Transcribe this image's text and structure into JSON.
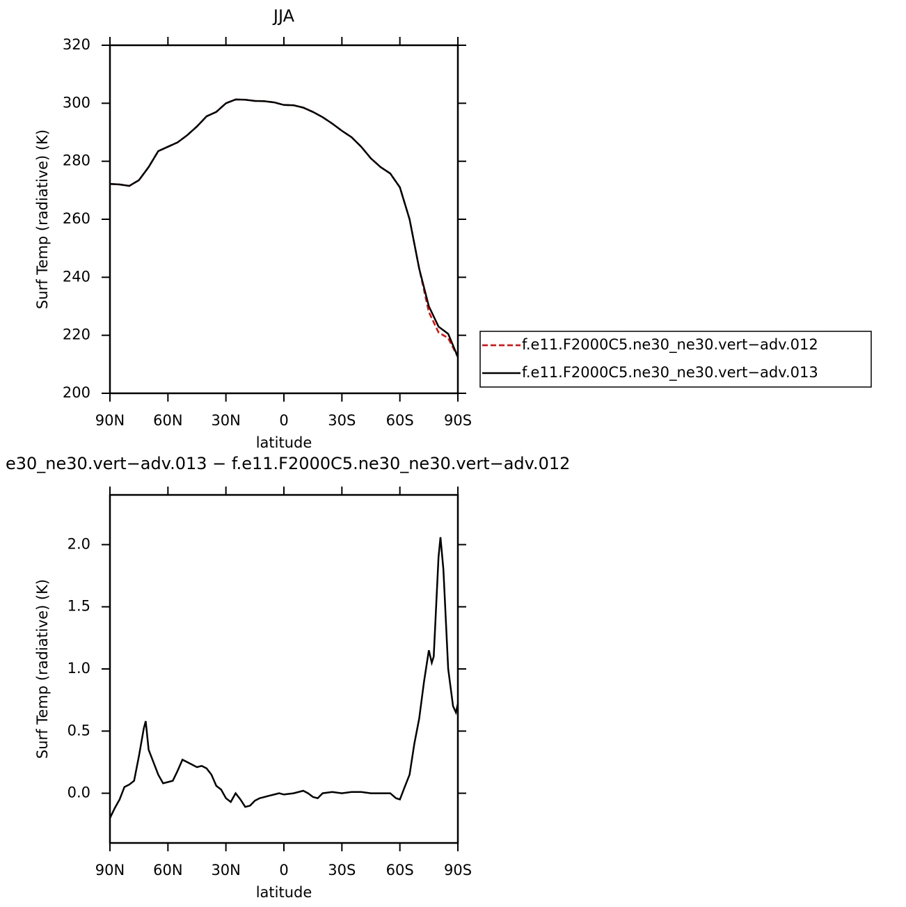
{
  "chart_data": [
    {
      "type": "line",
      "title": "JJA",
      "xlabel": "latitude",
      "ylabel": "Surf Temp (radiative) (K)",
      "x": [
        90,
        85,
        80,
        75,
        70,
        65,
        60,
        55,
        50,
        45,
        40,
        35,
        30,
        25,
        20,
        15,
        10,
        5,
        0,
        -5,
        -10,
        -15,
        -20,
        -25,
        -30,
        -35,
        -40,
        -45,
        -50,
        -55,
        -60,
        -65,
        -70,
        -75,
        -80,
        -85,
        -90
      ],
      "series": [
        {
          "name": "f.e11.F2000C5.ne30_ne30.vert−adv.012",
          "color": "#ff0000",
          "dashed": true,
          "values": [
            272.2,
            272,
            271.5,
            273.5,
            278,
            283.5,
            285,
            286.5,
            289,
            292,
            295.5,
            297,
            300,
            301.3,
            301.2,
            300.8,
            300.7,
            300.3,
            299.4,
            299.3,
            298.5,
            297,
            295.2,
            293,
            290.5,
            288.3,
            285,
            281,
            278,
            275.8,
            271,
            260,
            243,
            228,
            221,
            219,
            212.5
          ]
        },
        {
          "name": "f.e11.F2000C5.ne30_ne30.vert−adv.013",
          "color": "#000000",
          "dashed": false,
          "values": [
            272.2,
            272,
            271.5,
            273.5,
            278,
            283.5,
            285,
            286.5,
            289,
            292,
            295.5,
            297,
            300,
            301.3,
            301.2,
            300.8,
            300.7,
            300.3,
            299.4,
            299.3,
            298.5,
            297,
            295.2,
            293,
            290.5,
            288.3,
            285,
            281,
            278,
            275.8,
            271,
            260,
            243,
            230,
            223,
            220.5,
            212.5
          ]
        }
      ],
      "xlim": [
        90,
        -90
      ],
      "xticks": [
        {
          "value": 90,
          "label": "90N"
        },
        {
          "value": 60,
          "label": "60N"
        },
        {
          "value": 30,
          "label": "30N"
        },
        0,
        {
          "value": -30,
          "label": "30S"
        },
        {
          "value": -60,
          "label": "60S"
        },
        {
          "value": -90,
          "label": "90S"
        }
      ],
      "ylim": [
        200,
        320
      ],
      "yticks": [
        200,
        220,
        240,
        260,
        280,
        300,
        320
      ],
      "legend": "outside-right"
    },
    {
      "type": "line",
      "title": "e30_ne30.vert−adv.013 − f.e11.F2000C5.ne30_ne30.vert−adv.012",
      "xlabel": "latitude",
      "ylabel": "Surf Temp (radiative) (K)",
      "x": [
        90,
        87.5,
        85,
        82.5,
        80,
        77.5,
        75,
        72.5,
        71.5,
        70,
        67.5,
        65,
        62.5,
        60,
        57.5,
        55,
        52.5,
        50,
        47.5,
        45,
        42.5,
        40,
        37.5,
        35,
        32.5,
        30,
        27.5,
        25,
        22.5,
        20,
        17.5,
        15,
        12.5,
        10,
        7.5,
        5,
        2.5,
        0,
        -5,
        -10,
        -12.5,
        -15,
        -17.5,
        -20,
        -25,
        -30,
        -35,
        -40,
        -45,
        -50,
        -55,
        -58,
        -60,
        -62.5,
        -65,
        -67.5,
        -70,
        -72.5,
        -75,
        -76.5,
        -77.5,
        -80,
        -81,
        -82.5,
        -85,
        -87.5,
        -89,
        -90
      ],
      "series": [
        {
          "color": "#000000",
          "values": [
            -0.2,
            -0.12,
            -0.05,
            0.05,
            0.07,
            0.1,
            0.3,
            0.52,
            0.58,
            0.35,
            0.25,
            0.15,
            0.08,
            0.09,
            0.1,
            0.18,
            0.27,
            0.25,
            0.23,
            0.21,
            0.22,
            0.2,
            0.15,
            0.06,
            0.03,
            -0.04,
            -0.07,
            0,
            -0.05,
            -0.11,
            -0.1,
            -0.06,
            -0.04,
            -0.03,
            -0.02,
            -0.01,
            0,
            -0.01,
            0,
            0.02,
            0,
            -0.03,
            -0.04,
            0,
            0.01,
            0,
            0.01,
            0.01,
            0,
            0,
            0,
            -0.04,
            -0.05,
            0.05,
            0.15,
            0.4,
            0.6,
            0.9,
            1.15,
            1.05,
            1.1,
            1.9,
            2.06,
            1.8,
            1.0,
            0.7,
            0.65,
            0.72
          ]
        }
      ],
      "xlim": [
        90,
        -90
      ],
      "xticks": [
        {
          "value": 90,
          "label": "90N"
        },
        {
          "value": 60,
          "label": "60N"
        },
        {
          "value": 30,
          "label": "30N"
        },
        0,
        {
          "value": -30,
          "label": "30S"
        },
        {
          "value": -60,
          "label": "60S"
        },
        {
          "value": -90,
          "label": "90S"
        }
      ],
      "ylim": [
        -0.4,
        2.4
      ],
      "yticks": [
        {
          "value": 0,
          "label": "0.0"
        },
        0.5,
        {
          "value": 1,
          "label": "1.0"
        },
        1.5,
        {
          "value": 2,
          "label": "2.0"
        }
      ]
    }
  ]
}
